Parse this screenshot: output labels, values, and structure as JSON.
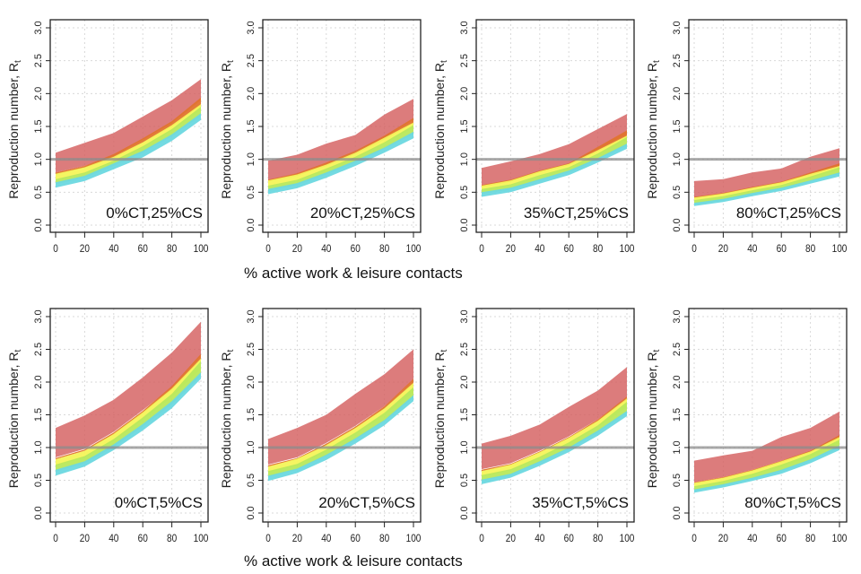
{
  "figure": {
    "ylabel": "Reproduction number, R",
    "ylabel_subscript": "t",
    "xlabel_top": "% active work & leisure contacts",
    "xlabel_bottom": "% active work & leisure contacts"
  },
  "colors": {
    "red": "#d45f5f",
    "orange": "#e0742e",
    "yellow": "#f4f45a",
    "green": "#b8e85c",
    "cyan": "#6cd8e0",
    "reference_line": "#8c8c8c",
    "grid": "#d9d9d9",
    "axis": "#222222"
  },
  "chart_data": [
    {
      "type": "area",
      "title": "0%CT,25%CS",
      "xlabel": "",
      "ylabel": "Reproduction number, Rt",
      "x": [
        0,
        20,
        40,
        60,
        80,
        100
      ],
      "xticks": [
        "0",
        "20",
        "40",
        "60",
        "80",
        "100"
      ],
      "yticks": [
        "0.0",
        "0.5",
        "1.0",
        "1.5",
        "2.0",
        "2.5",
        "3.0"
      ],
      "xlim": [
        0,
        100
      ],
      "ylim": [
        0,
        3
      ],
      "reference_line": 1.0,
      "grid": true,
      "series": [
        {
          "name": "red",
          "lower": [
            0.8,
            0.9,
            1.05,
            1.3,
            1.55,
            1.9
          ],
          "upper": [
            1.1,
            1.25,
            1.4,
            1.65,
            1.9,
            2.22
          ]
        },
        {
          "name": "orange",
          "lower": [
            0.77,
            0.87,
            1.02,
            1.25,
            1.5,
            1.82
          ],
          "upper": [
            0.8,
            0.9,
            1.08,
            1.32,
            1.58,
            1.94
          ]
        },
        {
          "name": "yellow",
          "lower": [
            0.69,
            0.79,
            0.96,
            1.18,
            1.43,
            1.75
          ],
          "upper": [
            0.78,
            0.88,
            1.04,
            1.26,
            1.52,
            1.84
          ]
        },
        {
          "name": "green",
          "lower": [
            0.62,
            0.72,
            0.9,
            1.1,
            1.35,
            1.66
          ],
          "upper": [
            0.7,
            0.8,
            0.98,
            1.2,
            1.46,
            1.8
          ]
        },
        {
          "name": "cyan",
          "lower": [
            0.57,
            0.67,
            0.85,
            1.03,
            1.28,
            1.6
          ],
          "upper": [
            0.65,
            0.75,
            0.94,
            1.13,
            1.38,
            1.7
          ]
        }
      ]
    },
    {
      "type": "area",
      "title": "20%CT,25%CS",
      "xlabel": "",
      "ylabel": "Reproduction number, Rt",
      "x": [
        0,
        20,
        40,
        60,
        80,
        100
      ],
      "xticks": [
        "0",
        "20",
        "40",
        "60",
        "80",
        "100"
      ],
      "yticks": [
        "0.0",
        "0.5",
        "1.0",
        "1.5",
        "2.0",
        "2.5",
        "3.0"
      ],
      "xlim": [
        0,
        100
      ],
      "ylim": [
        0,
        3
      ],
      "reference_line": 1.0,
      "grid": true,
      "series": [
        {
          "name": "red",
          "lower": [
            0.68,
            0.78,
            0.93,
            1.12,
            1.33,
            1.6
          ],
          "upper": [
            0.98,
            1.07,
            1.24,
            1.37,
            1.68,
            1.92
          ]
        },
        {
          "name": "orange",
          "lower": [
            0.66,
            0.75,
            0.9,
            1.08,
            1.3,
            1.55
          ],
          "upper": [
            0.69,
            0.79,
            0.95,
            1.13,
            1.36,
            1.63
          ]
        },
        {
          "name": "yellow",
          "lower": [
            0.59,
            0.68,
            0.84,
            1.02,
            1.24,
            1.48
          ],
          "upper": [
            0.68,
            0.77,
            0.92,
            1.1,
            1.33,
            1.56
          ]
        },
        {
          "name": "green",
          "lower": [
            0.52,
            0.61,
            0.77,
            0.95,
            1.16,
            1.38
          ],
          "upper": [
            0.6,
            0.69,
            0.86,
            1.04,
            1.26,
            1.52
          ]
        },
        {
          "name": "cyan",
          "lower": [
            0.47,
            0.56,
            0.72,
            0.9,
            1.1,
            1.32
          ],
          "upper": [
            0.55,
            0.64,
            0.8,
            0.98,
            1.18,
            1.42
          ]
        }
      ]
    },
    {
      "type": "area",
      "title": "35%CT,25%CS",
      "xlabel": "",
      "ylabel": "Reproduction number, Rt",
      "x": [
        0,
        20,
        40,
        60,
        80,
        100
      ],
      "xticks": [
        "0",
        "20",
        "40",
        "60",
        "80",
        "100"
      ],
      "yticks": [
        "0.0",
        "0.5",
        "1.0",
        "1.5",
        "2.0",
        "2.5",
        "3.0"
      ],
      "xlim": [
        0,
        100
      ],
      "ylim": [
        0,
        3
      ],
      "reference_line": 1.0,
      "grid": true,
      "series": [
        {
          "name": "red",
          "lower": [
            0.6,
            0.68,
            0.82,
            0.93,
            1.15,
            1.38
          ],
          "upper": [
            0.87,
            0.97,
            1.08,
            1.23,
            1.46,
            1.69
          ]
        },
        {
          "name": "orange",
          "lower": [
            0.58,
            0.66,
            0.8,
            0.91,
            1.12,
            1.35
          ],
          "upper": [
            0.61,
            0.69,
            0.83,
            0.94,
            1.19,
            1.44
          ]
        },
        {
          "name": "yellow",
          "lower": [
            0.53,
            0.61,
            0.75,
            0.86,
            1.07,
            1.29
          ],
          "upper": [
            0.6,
            0.68,
            0.82,
            0.93,
            1.14,
            1.36
          ]
        },
        {
          "name": "green",
          "lower": [
            0.47,
            0.54,
            0.68,
            0.8,
            1.0,
            1.21
          ],
          "upper": [
            0.55,
            0.62,
            0.76,
            0.88,
            1.09,
            1.34
          ]
        },
        {
          "name": "cyan",
          "lower": [
            0.43,
            0.5,
            0.63,
            0.76,
            0.95,
            1.16
          ],
          "upper": [
            0.5,
            0.57,
            0.7,
            0.83,
            1.02,
            1.24
          ]
        }
      ]
    },
    {
      "type": "area",
      "title": "80%CT,25%CS",
      "xlabel": "",
      "ylabel": "Reproduction number, Rt",
      "x": [
        0,
        20,
        40,
        60,
        80,
        100
      ],
      "xticks": [
        "0",
        "20",
        "40",
        "60",
        "80",
        "100"
      ],
      "yticks": [
        "0.0",
        "0.5",
        "1.0",
        "1.5",
        "2.0",
        "2.5",
        "3.0"
      ],
      "xlim": [
        0,
        100
      ],
      "ylim": [
        0,
        3
      ],
      "reference_line": 1.0,
      "grid": true,
      "series": [
        {
          "name": "red",
          "lower": [
            0.42,
            0.48,
            0.57,
            0.65,
            0.78,
            0.9
          ],
          "upper": [
            0.67,
            0.7,
            0.8,
            0.86,
            1.04,
            1.17
          ]
        },
        {
          "name": "orange",
          "lower": [
            0.41,
            0.47,
            0.56,
            0.63,
            0.76,
            0.88
          ],
          "upper": [
            0.43,
            0.49,
            0.58,
            0.66,
            0.8,
            0.94
          ]
        },
        {
          "name": "yellow",
          "lower": [
            0.37,
            0.43,
            0.52,
            0.6,
            0.72,
            0.84
          ],
          "upper": [
            0.42,
            0.48,
            0.57,
            0.65,
            0.78,
            0.9
          ]
        },
        {
          "name": "green",
          "lower": [
            0.32,
            0.38,
            0.47,
            0.55,
            0.67,
            0.78
          ],
          "upper": [
            0.38,
            0.44,
            0.53,
            0.61,
            0.74,
            0.88
          ]
        },
        {
          "name": "cyan",
          "lower": [
            0.29,
            0.35,
            0.44,
            0.52,
            0.63,
            0.74
          ],
          "upper": [
            0.34,
            0.4,
            0.49,
            0.57,
            0.68,
            0.8
          ]
        }
      ]
    },
    {
      "type": "area",
      "title": "0%CT,5%CS",
      "xlabel": "",
      "ylabel": "Reproduction number, Rt",
      "x": [
        0,
        20,
        40,
        60,
        80,
        100
      ],
      "xticks": [
        "0",
        "20",
        "40",
        "60",
        "80",
        "100"
      ],
      "yticks": [
        "0.0",
        "0.5",
        "1.0",
        "1.5",
        "2.0",
        "2.5",
        "3.0"
      ],
      "xlim": [
        0,
        100
      ],
      "ylim": [
        0,
        3
      ],
      "reference_line": 1.0,
      "grid": true,
      "series": [
        {
          "name": "red",
          "lower": [
            0.85,
            0.98,
            1.24,
            1.57,
            1.92,
            2.4
          ],
          "upper": [
            1.3,
            1.49,
            1.73,
            2.07,
            2.45,
            2.92
          ]
        },
        {
          "name": "orange",
          "lower": [
            0.82,
            0.95,
            1.2,
            1.52,
            1.88,
            2.34
          ],
          "upper": [
            0.84,
            0.97,
            1.23,
            1.56,
            1.94,
            2.43
          ]
        },
        {
          "name": "yellow",
          "lower": [
            0.72,
            0.85,
            1.1,
            1.42,
            1.77,
            2.2
          ],
          "upper": [
            0.82,
            0.95,
            1.21,
            1.54,
            1.9,
            2.36
          ]
        },
        {
          "name": "green",
          "lower": [
            0.63,
            0.76,
            1.01,
            1.32,
            1.66,
            2.1
          ],
          "upper": [
            0.74,
            0.87,
            1.13,
            1.46,
            1.82,
            2.32
          ]
        },
        {
          "name": "cyan",
          "lower": [
            0.57,
            0.71,
            0.96,
            1.26,
            1.6,
            2.05
          ],
          "upper": [
            0.66,
            0.79,
            1.05,
            1.36,
            1.71,
            2.15
          ]
        }
      ]
    },
    {
      "type": "area",
      "title": "20%CT,5%CS",
      "xlabel": "",
      "ylabel": "Reproduction number, Rt",
      "x": [
        0,
        20,
        40,
        60,
        80,
        100
      ],
      "xticks": [
        "0",
        "20",
        "40",
        "60",
        "80",
        "100"
      ],
      "yticks": [
        "0.0",
        "0.5",
        "1.0",
        "1.5",
        "2.0",
        "2.5",
        "3.0"
      ],
      "xlim": [
        0,
        100
      ],
      "ylim": [
        0,
        3
      ],
      "reference_line": 1.0,
      "grid": true,
      "series": [
        {
          "name": "red",
          "lower": [
            0.74,
            0.85,
            1.07,
            1.33,
            1.63,
            2.03
          ],
          "upper": [
            1.13,
            1.3,
            1.5,
            1.82,
            2.12,
            2.5
          ]
        },
        {
          "name": "orange",
          "lower": [
            0.71,
            0.82,
            1.03,
            1.29,
            1.59,
            1.97
          ],
          "upper": [
            0.73,
            0.84,
            1.06,
            1.32,
            1.63,
            2.05
          ]
        },
        {
          "name": "yellow",
          "lower": [
            0.62,
            0.73,
            0.94,
            1.2,
            1.49,
            1.85
          ],
          "upper": [
            0.71,
            0.83,
            1.04,
            1.3,
            1.6,
            1.99
          ]
        },
        {
          "name": "green",
          "lower": [
            0.55,
            0.66,
            0.87,
            1.12,
            1.4,
            1.76
          ],
          "upper": [
            0.64,
            0.75,
            0.97,
            1.23,
            1.53,
            1.92
          ]
        },
        {
          "name": "cyan",
          "lower": [
            0.49,
            0.61,
            0.81,
            1.06,
            1.34,
            1.71
          ],
          "upper": [
            0.57,
            0.68,
            0.89,
            1.14,
            1.42,
            1.8
          ]
        }
      ]
    },
    {
      "type": "area",
      "title": "35%CT,5%CS",
      "xlabel": "",
      "ylabel": "Reproduction number, Rt",
      "x": [
        0,
        20,
        40,
        60,
        80,
        100
      ],
      "xticks": [
        "0",
        "20",
        "40",
        "60",
        "80",
        "100"
      ],
      "yticks": [
        "0.0",
        "0.5",
        "1.0",
        "1.5",
        "2.0",
        "2.5",
        "3.0"
      ],
      "xlim": [
        0,
        100
      ],
      "ylim": [
        0,
        3
      ],
      "reference_line": 1.0,
      "grid": true,
      "series": [
        {
          "name": "red",
          "lower": [
            0.67,
            0.76,
            0.95,
            1.17,
            1.43,
            1.77
          ],
          "upper": [
            1.06,
            1.18,
            1.35,
            1.62,
            1.87,
            2.23
          ]
        },
        {
          "name": "orange",
          "lower": [
            0.64,
            0.73,
            0.92,
            1.14,
            1.4,
            1.73
          ],
          "upper": [
            0.66,
            0.75,
            0.94,
            1.16,
            1.43,
            1.78
          ]
        },
        {
          "name": "yellow",
          "lower": [
            0.56,
            0.65,
            0.84,
            1.05,
            1.31,
            1.62
          ],
          "upper": [
            0.64,
            0.74,
            0.93,
            1.15,
            1.41,
            1.75
          ]
        },
        {
          "name": "green",
          "lower": [
            0.49,
            0.58,
            0.77,
            0.98,
            1.23,
            1.53
          ],
          "upper": [
            0.58,
            0.67,
            0.86,
            1.08,
            1.34,
            1.7
          ]
        },
        {
          "name": "cyan",
          "lower": [
            0.44,
            0.54,
            0.72,
            0.93,
            1.18,
            1.48
          ],
          "upper": [
            0.51,
            0.6,
            0.79,
            1.0,
            1.26,
            1.56
          ]
        }
      ]
    },
    {
      "type": "area",
      "title": "80%CT,5%CS",
      "xlabel": "",
      "ylabel": "Reproduction number, Rt",
      "x": [
        0,
        20,
        40,
        60,
        80,
        100
      ],
      "xticks": [
        "0",
        "20",
        "40",
        "60",
        "80",
        "100"
      ],
      "yticks": [
        "0.0",
        "0.5",
        "1.0",
        "1.5",
        "2.0",
        "2.5",
        "3.0"
      ],
      "xlim": [
        0,
        100
      ],
      "ylim": [
        0,
        3
      ],
      "reference_line": 1.0,
      "grid": true,
      "series": [
        {
          "name": "red",
          "lower": [
            0.47,
            0.55,
            0.66,
            0.8,
            0.94,
            1.17
          ],
          "upper": [
            0.8,
            0.88,
            0.95,
            1.16,
            1.3,
            1.55
          ]
        },
        {
          "name": "orange",
          "lower": [
            0.45,
            0.53,
            0.64,
            0.77,
            0.92,
            1.14
          ],
          "upper": [
            0.47,
            0.55,
            0.66,
            0.8,
            0.95,
            1.19
          ]
        },
        {
          "name": "yellow",
          "lower": [
            0.39,
            0.47,
            0.58,
            0.71,
            0.86,
            1.07
          ],
          "upper": [
            0.46,
            0.54,
            0.65,
            0.79,
            0.94,
            1.16
          ]
        },
        {
          "name": "green",
          "lower": [
            0.34,
            0.42,
            0.52,
            0.64,
            0.8,
            1.0
          ],
          "upper": [
            0.41,
            0.49,
            0.6,
            0.74,
            0.9,
            1.12
          ]
        },
        {
          "name": "cyan",
          "lower": [
            0.31,
            0.39,
            0.49,
            0.6,
            0.76,
            0.96
          ],
          "upper": [
            0.36,
            0.44,
            0.54,
            0.66,
            0.82,
            1.03
          ]
        }
      ]
    }
  ]
}
